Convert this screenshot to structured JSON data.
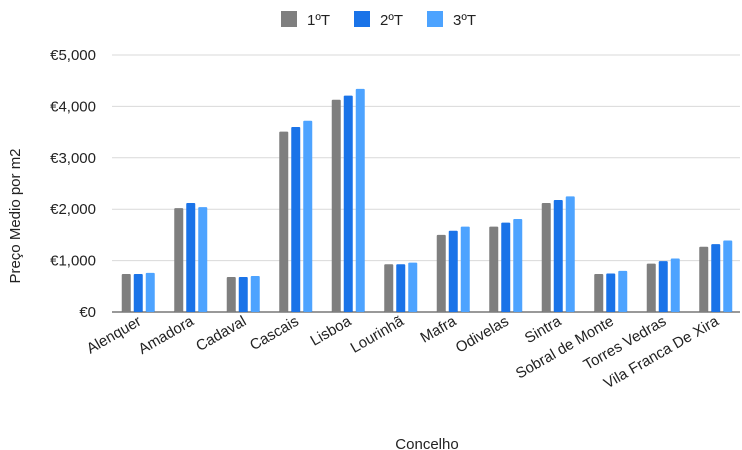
{
  "chart_data": {
    "type": "bar",
    "title": "",
    "xlabel": "Concelho",
    "ylabel": "Preço Medio por m2",
    "ylim": [
      0,
      5000
    ],
    "yticks": [
      0,
      1000,
      2000,
      3000,
      4000,
      5000
    ],
    "ytick_labels": [
      "€0",
      "€1,000",
      "€2,000",
      "€3,000",
      "€4,000",
      "€5,000"
    ],
    "grid": true,
    "legend_position": "top-center",
    "categories": [
      "Alenquer",
      "Amadora",
      "Cadaval",
      "Cascais",
      "Lisboa",
      "Lourinhã",
      "Mafra",
      "Odivelas",
      "Sintra",
      "Sobral de Monte",
      "Torres Vedras",
      "Vila Franca De Xira"
    ],
    "series": [
      {
        "name": "1ºT",
        "color": "#7f7f7f",
        "values": [
          740,
          2020,
          680,
          3510,
          4130,
          930,
          1500,
          1660,
          2120,
          740,
          940,
          1270
        ]
      },
      {
        "name": "2ºT",
        "color": "#1a73e8",
        "values": [
          740,
          2120,
          680,
          3600,
          4210,
          930,
          1580,
          1740,
          2180,
          750,
          990,
          1320
        ]
      },
      {
        "name": "3ºT",
        "color": "#4da3ff",
        "values": [
          760,
          2040,
          700,
          3720,
          4340,
          960,
          1660,
          1810,
          2250,
          800,
          1040,
          1390
        ]
      }
    ]
  }
}
